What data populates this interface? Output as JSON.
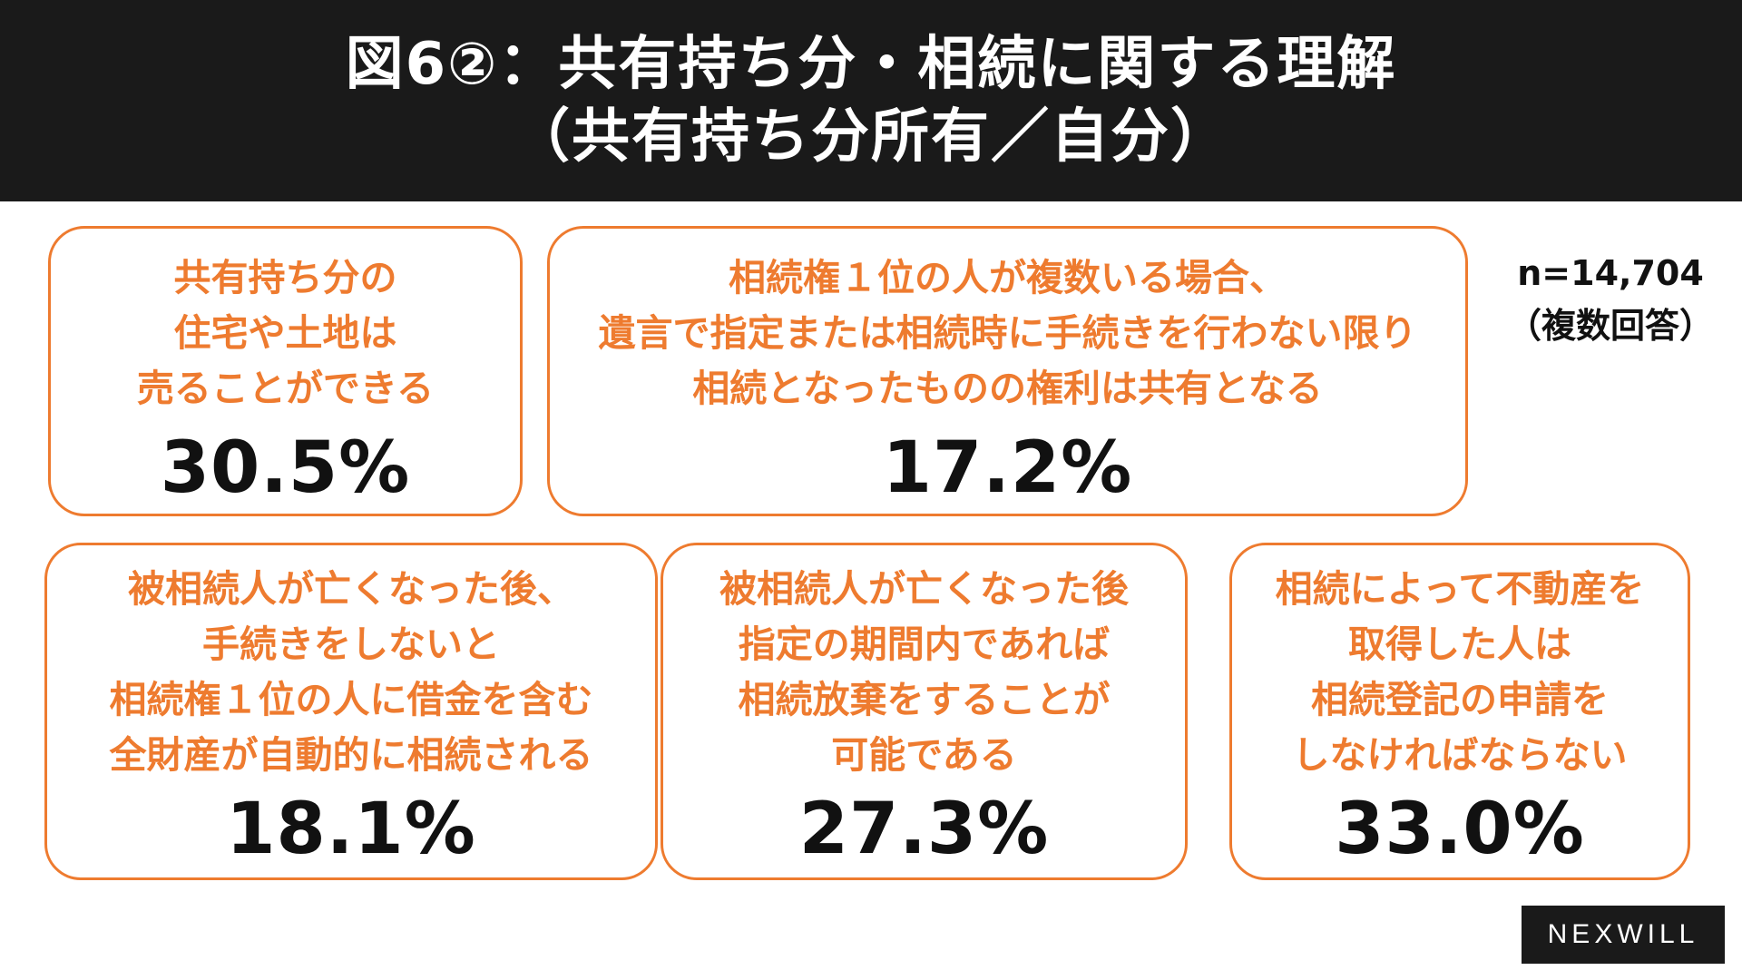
{
  "header": {
    "title_line1": "図6②：共有持ち分・相続に関する理解",
    "title_line2": "（共有持ち分所有／自分）"
  },
  "sample": {
    "n": "n=14,704",
    "note": "（複数回答）"
  },
  "cards": [
    {
      "lines": [
        "共有持ち分の",
        "住宅や土地は",
        "売ることができる"
      ],
      "value": "30.5%"
    },
    {
      "lines": [
        "相続権１位の人が複数いる場合、",
        "遺言で指定または相続時に手続きを行わない限り",
        "相続となったものの権利は共有となる"
      ],
      "value": "17.2%"
    },
    {
      "lines": [
        "被相続人が亡くなった後、",
        "手続きをしないと",
        "相続権１位の人に借金を含む",
        "全財産が自動的に相続される"
      ],
      "value": "18.1%"
    },
    {
      "lines": [
        "被相続人が亡くなった後",
        "指定の期間内であれば",
        "相続放棄をすることが",
        "可能である"
      ],
      "value": "27.3%"
    },
    {
      "lines": [
        "相続によって不動産を",
        "取得した人は",
        "相続登記の申請を",
        "しなければならない"
      ],
      "value": "33.0%"
    }
  ],
  "logo": "NEXWILL",
  "colors": {
    "accent": "#ee7b2f",
    "header_bg": "#1a1a1a",
    "value_text": "#111111"
  }
}
